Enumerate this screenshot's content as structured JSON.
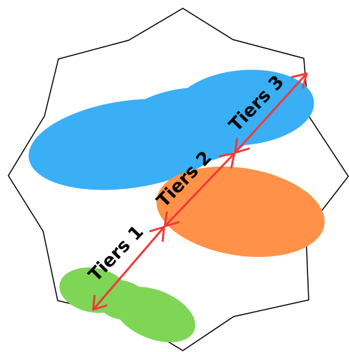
{
  "diagram": {
    "labels": {
      "tier1": "Tiers 1",
      "tier2": "Tiers 2",
      "tier3": "Tiers 3"
    },
    "colors": {
      "outline": "#000000",
      "background": "#ffffff",
      "blue_region": "#3aaff5",
      "orange_region": "#ff9248",
      "green_region": "#7ed556",
      "arrow": "#f03a3a",
      "label_text": "#000000"
    }
  }
}
